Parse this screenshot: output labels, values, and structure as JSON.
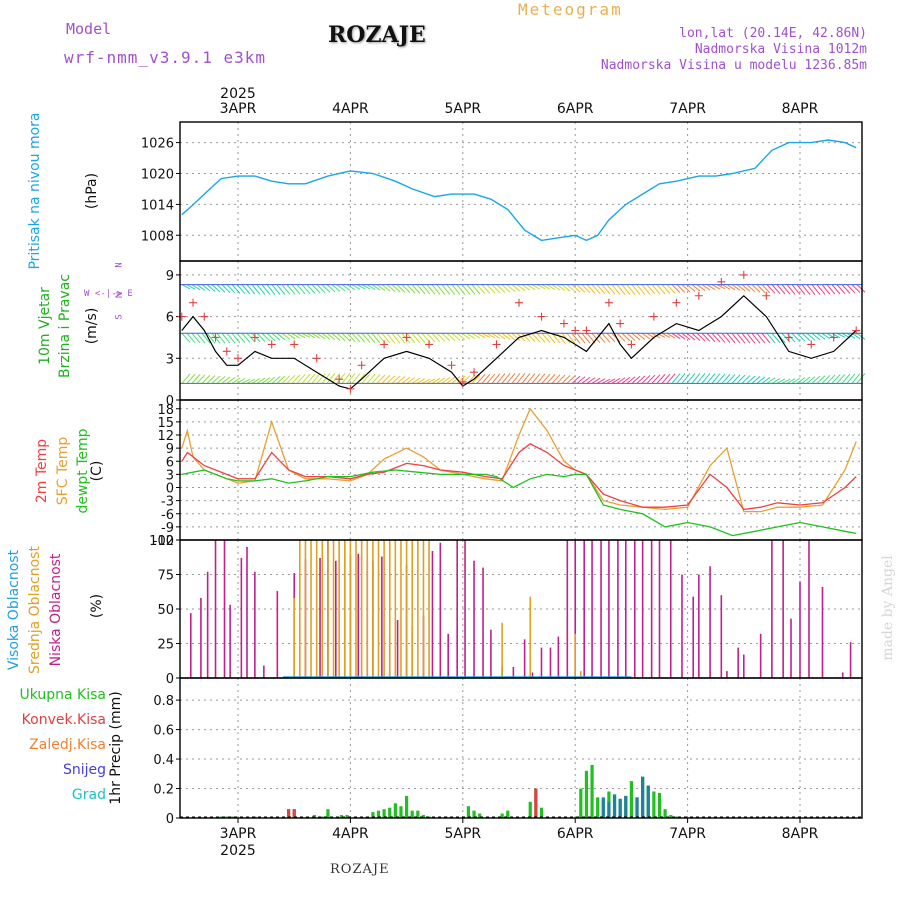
{
  "header": {
    "model_label": "Model",
    "model_name": "wrf-nmm_v3.9.1 e3km",
    "station": "ROZAJE",
    "title": "Meteogram",
    "lonlat": "lon,lat (20.14E, 42.86N)",
    "elevation": "Nadmorska Visina 1012m",
    "model_elevation": "Nadmorska Visina u modelu 1236.85m",
    "year": "2025",
    "credit": "made by Angel",
    "footer": "ROZAJE"
  },
  "colors": {
    "pressure": "#1aa6e6",
    "wind": "#20b020",
    "t2m": "#f04040",
    "sfc": "#e8a030",
    "dew": "#20c020",
    "high_cloud": "#20a0e0",
    "mid_cloud": "#e0a020",
    "low_cloud": "#c0208a",
    "total_precip": "#20c020",
    "conv_precip": "#e04040",
    "frz_precip": "#f08030",
    "snow": "#4040e0",
    "hail": "#20c0c0"
  },
  "chart_data": [
    {
      "type": "line",
      "title": "Pritisak na nivou mora",
      "ylabel": "(hPa)",
      "x_labels": [
        "3APR",
        "4APR",
        "5APR",
        "6APR",
        "7APR",
        "8APR"
      ],
      "x_range_days": [
        -0.5,
        5.5
      ],
      "yticks": [
        1008,
        1014,
        1020,
        1026
      ],
      "ylim": [
        1003,
        1030
      ],
      "series": [
        {
          "name": "MSLP",
          "x": [
            -0.5,
            -0.42,
            -0.3,
            -0.15,
            0,
            0.15,
            0.3,
            0.45,
            0.6,
            0.8,
            1.0,
            1.2,
            1.4,
            1.55,
            1.75,
            1.9,
            2.1,
            2.25,
            2.4,
            2.55,
            2.7,
            2.85,
            3.0,
            3.1,
            3.2,
            3.3,
            3.45,
            3.6,
            3.75,
            3.9,
            4.1,
            4.25,
            4.4,
            4.6,
            4.75,
            4.9,
            5.1,
            5.25,
            5.4,
            5.5
          ],
          "values": [
            1012,
            1013.5,
            1016,
            1019,
            1019.5,
            1019.5,
            1018.5,
            1018,
            1018,
            1019.5,
            1020.5,
            1020,
            1018.5,
            1017,
            1015.5,
            1016,
            1016,
            1015,
            1013,
            1009,
            1007,
            1007.5,
            1008,
            1007,
            1008,
            1011,
            1014,
            1016,
            1018,
            1018.5,
            1019.5,
            1019.5,
            1020,
            1021,
            1024.5,
            1026,
            1026,
            1026.5,
            1026,
            1025
          ]
        }
      ]
    },
    {
      "type": "line",
      "title": "10m Vjetar Brzina i Pravac",
      "ylabel": "(m/s)",
      "x_labels": [
        "3APR",
        "4APR",
        "5APR",
        "6APR",
        "7APR",
        "8APR"
      ],
      "yticks": [
        0,
        3,
        6,
        9
      ],
      "ylim": [
        0,
        10
      ],
      "compass": "W <-|-> E",
      "series": [
        {
          "name": "10m wind",
          "x": [
            -0.5,
            -0.4,
            -0.3,
            -0.2,
            -0.1,
            0,
            0.15,
            0.3,
            0.5,
            0.7,
            0.9,
            1.0,
            1.1,
            1.3,
            1.5,
            1.7,
            1.9,
            2.0,
            2.1,
            2.3,
            2.5,
            2.7,
            2.9,
            3.0,
            3.1,
            3.3,
            3.4,
            3.5,
            3.7,
            3.9,
            4.1,
            4.3,
            4.5,
            4.7,
            4.9,
            5.1,
            5.3,
            5.5
          ],
          "values": [
            5,
            6,
            5,
            3.5,
            2.5,
            2.5,
            3.5,
            3,
            3,
            2,
            1,
            0.8,
            1.5,
            3,
            3.5,
            3,
            2,
            1,
            1.5,
            3,
            4.5,
            5,
            4.5,
            4,
            3.5,
            5.5,
            4,
            3,
            4.5,
            5.5,
            5,
            6,
            7.5,
            6,
            3.5,
            3,
            3.5,
            5
          ]
        },
        {
          "name": "gust",
          "x": [
            -0.5,
            -0.4,
            -0.3,
            -0.2,
            -0.1,
            0,
            0.15,
            0.3,
            0.5,
            0.7,
            0.9,
            1.0,
            1.1,
            1.3,
            1.5,
            1.7,
            1.9,
            2.0,
            2.1,
            2.3,
            2.5,
            2.7,
            2.9,
            3.0,
            3.1,
            3.3,
            3.4,
            3.5,
            3.7,
            3.9,
            4.1,
            4.3,
            4.5,
            4.7,
            4.9,
            5.1,
            5.3,
            5.5
          ],
          "values": [
            6,
            7,
            6,
            4.5,
            3.5,
            3,
            4.5,
            4,
            4,
            3,
            1.5,
            0.8,
            2.5,
            4,
            4.5,
            4,
            2.5,
            1.3,
            2,
            4,
            7,
            6,
            5.5,
            5,
            5,
            7,
            5.5,
            4,
            6,
            7,
            7.5,
            8.5,
            9,
            7.5,
            4.5,
            4,
            4.5,
            5
          ]
        }
      ]
    },
    {
      "type": "line",
      "title": "2m Temp / SFC Temp / dewpt Temp",
      "ylabel": "(C)",
      "x_labels": [
        "3APR",
        "4APR",
        "5APR",
        "6APR",
        "7APR",
        "8APR"
      ],
      "yticks": [
        -12,
        -9,
        -6,
        -3,
        0,
        3,
        6,
        9,
        12,
        15,
        18
      ],
      "ylim": [
        -12,
        20
      ],
      "series": [
        {
          "name": "2m Temp",
          "x": [
            -0.5,
            -0.45,
            -0.3,
            -0.1,
            0,
            0.15,
            0.3,
            0.45,
            0.6,
            0.8,
            1.0,
            1.15,
            1.3,
            1.5,
            1.65,
            1.8,
            2.0,
            2.2,
            2.35,
            2.5,
            2.6,
            2.75,
            2.9,
            3.0,
            3.1,
            3.25,
            3.4,
            3.6,
            3.8,
            4.0,
            4.2,
            4.35,
            4.5,
            4.65,
            4.8,
            5.0,
            5.2,
            5.4,
            5.5
          ],
          "values": [
            6,
            8,
            5,
            3,
            2,
            2,
            8,
            4,
            2.5,
            2.5,
            2,
            3,
            3.5,
            5.5,
            5,
            4,
            3.5,
            2.5,
            2,
            8,
            10,
            8,
            5,
            4,
            3,
            -1.5,
            -3,
            -4.5,
            -4.5,
            -4,
            3,
            0,
            -5,
            -4.5,
            -3.5,
            -4,
            -3.5,
            0,
            2.5
          ]
        },
        {
          "name": "SFC Temp",
          "x": [
            -0.5,
            -0.45,
            -0.4,
            -0.3,
            -0.1,
            0,
            0.15,
            0.3,
            0.45,
            0.6,
            0.8,
            1.0,
            1.15,
            1.3,
            1.5,
            1.65,
            1.8,
            2.0,
            2.2,
            2.35,
            2.5,
            2.6,
            2.75,
            2.9,
            3.0,
            3.1,
            3.25,
            3.4,
            3.6,
            3.8,
            4.0,
            4.2,
            4.35,
            4.5,
            4.65,
            4.8,
            5.0,
            5.2,
            5.4,
            5.5
          ],
          "values": [
            9,
            13,
            7,
            4,
            2,
            1,
            1.5,
            15,
            4,
            2,
            2,
            1.5,
            3,
            6.5,
            9,
            7,
            4,
            3,
            2,
            1.5,
            12,
            18,
            13,
            6,
            4,
            3,
            -3,
            -4,
            -4.5,
            -5,
            -4.5,
            5,
            9,
            -5.5,
            -5.5,
            -4.5,
            -4.5,
            -4,
            4,
            10.5
          ]
        },
        {
          "name": "dewpt Temp",
          "x": [
            -0.5,
            -0.4,
            -0.3,
            -0.1,
            0,
            0.15,
            0.3,
            0.45,
            0.6,
            0.8,
            1.0,
            1.2,
            1.4,
            1.6,
            1.8,
            2.0,
            2.2,
            2.3,
            2.45,
            2.6,
            2.75,
            2.9,
            3.0,
            3.1,
            3.25,
            3.4,
            3.6,
            3.8,
            4.0,
            4.2,
            4.4,
            4.6,
            4.8,
            5.0,
            5.2,
            5.4,
            5.5
          ],
          "values": [
            3,
            3.5,
            4,
            2,
            1.5,
            1.5,
            2,
            1,
            1.5,
            2.5,
            2.5,
            3.5,
            4,
            3.5,
            3,
            3,
            3,
            2.5,
            0,
            2,
            3,
            2.5,
            3,
            3,
            -4,
            -5,
            -6,
            -9,
            -8,
            -9,
            -11,
            -10,
            -9,
            -8,
            -9,
            -10,
            -10.5
          ]
        }
      ]
    },
    {
      "type": "bar",
      "title": "Visoka / Srednja / Niska Oblacnost",
      "ylabel": "(%)",
      "x_labels": [
        "3APR",
        "4APR",
        "5APR",
        "6APR",
        "7APR",
        "8APR"
      ],
      "yticks": [
        0,
        25,
        50,
        75,
        100
      ],
      "ylim": [
        0,
        100
      ],
      "series": [
        {
          "name": "Niska Oblacnost",
          "x": [
            -0.42,
            -0.33,
            -0.27,
            -0.2,
            -0.12,
            -0.07,
            0.03,
            0.08,
            0.15,
            0.23,
            0.35,
            0.5,
            0.6,
            0.73,
            0.8,
            0.87,
            0.95,
            1.0,
            1.07,
            1.15,
            1.2,
            1.28,
            1.35,
            1.42,
            1.5,
            1.55,
            1.65,
            1.73,
            1.8,
            1.87,
            1.95,
            2.02,
            2.1,
            2.18,
            2.25,
            2.35,
            2.45,
            2.55,
            2.62,
            2.7,
            2.78,
            2.85,
            2.93,
            3.0,
            3.08,
            3.15,
            3.23,
            3.3,
            3.38,
            3.45,
            3.53,
            3.6,
            3.68,
            3.75,
            3.85,
            3.95,
            4.05,
            4.1,
            4.2,
            4.3,
            4.35,
            4.45,
            4.5,
            4.65,
            4.75,
            4.85,
            4.92,
            5.0,
            5.08,
            5.2,
            5.38,
            5.45
          ],
          "values": [
            47,
            58,
            77,
            100,
            100,
            53,
            87,
            95,
            77,
            9,
            63,
            76,
            86,
            87,
            100,
            85,
            100,
            89,
            90,
            85,
            85,
            88,
            30,
            42,
            82,
            38,
            45,
            92,
            98,
            32,
            100,
            100,
            85,
            80,
            35,
            8,
            8,
            28,
            4,
            22,
            22,
            30,
            100,
            100,
            100,
            100,
            100,
            100,
            100,
            100,
            100,
            100,
            100,
            100,
            100,
            75,
            59,
            75,
            81,
            60,
            5,
            22,
            17,
            32,
            100,
            100,
            43,
            70,
            100,
            66,
            4,
            26
          ]
        },
        {
          "name": "Srednja Oblacnost",
          "x": [
            0.5,
            0.55,
            0.6,
            0.65,
            0.7,
            0.75,
            0.8,
            0.85,
            0.9,
            0.95,
            1.0,
            1.05,
            1.1,
            1.15,
            1.2,
            1.25,
            1.3,
            1.35,
            1.4,
            1.45,
            1.5,
            1.55,
            1.6,
            1.65,
            1.7,
            2.35,
            2.6,
            3.0,
            3.05
          ],
          "values": [
            58,
            100,
            100,
            100,
            100,
            100,
            100,
            100,
            100,
            100,
            100,
            100,
            100,
            100,
            100,
            100,
            100,
            100,
            100,
            100,
            100,
            100,
            100,
            100,
            100,
            40,
            59,
            32,
            5
          ]
        },
        {
          "name": "Visoka Oblacnost",
          "x": [],
          "values": []
        }
      ]
    },
    {
      "type": "bar",
      "title": "1hr Precip",
      "ylabel": "1hr Precip (mm)",
      "x_labels": [
        "3APR",
        "4APR",
        "5APR",
        "6APR",
        "7APR",
        "8APR"
      ],
      "yticks": [
        0,
        0.2,
        0.4,
        0.6,
        0.8
      ],
      "ylim": [
        0,
        0.95
      ],
      "legend": [
        "Ukupna Kisa",
        "Konvek.Kisa",
        "Zaledj.Kisa",
        "Snijeg",
        "Grad"
      ],
      "series": [
        {
          "name": "Ukupna Kisa",
          "x": [
            -0.15,
            -0.1,
            -0.05,
            0.15,
            0.45,
            0.5,
            0.68,
            0.75,
            0.8,
            0.92,
            0.97,
            1.15,
            1.2,
            1.25,
            1.3,
            1.35,
            1.4,
            1.45,
            1.5,
            1.55,
            1.6,
            1.65,
            1.7,
            1.85,
            1.9,
            2.05,
            2.1,
            2.15,
            2.35,
            2.4,
            2.6,
            2.65,
            2.7,
            3.05,
            3.1,
            3.15,
            3.2,
            3.25,
            3.3,
            3.35,
            3.4,
            3.45,
            3.5,
            3.55,
            3.6,
            3.65,
            3.7,
            3.75,
            3.8,
            3.85,
            3.9
          ],
          "values": [
            0.01,
            0.01,
            0.01,
            0.01,
            0.06,
            0.06,
            0.02,
            0.01,
            0.06,
            0.02,
            0.02,
            0.01,
            0.04,
            0.05,
            0.06,
            0.07,
            0.1,
            0.08,
            0.15,
            0.05,
            0.05,
            0.02,
            0.01,
            0.01,
            0.01,
            0.08,
            0.05,
            0.03,
            0.03,
            0.05,
            0.11,
            0.2,
            0.07,
            0.2,
            0.32,
            0.36,
            0.14,
            0.12,
            0.18,
            0.16,
            0.13,
            0.15,
            0.25,
            0.14,
            0.28,
            0.22,
            0.18,
            0.17,
            0.06,
            0.02,
            0.01
          ]
        },
        {
          "name": "Konvek.Kisa",
          "x": [
            0.45,
            0.5,
            2.65
          ],
          "values": [
            0.06,
            0.06,
            0.2
          ]
        },
        {
          "name": "Snijeg",
          "x": [
            3.25,
            3.3,
            3.35,
            3.4,
            3.45,
            3.55,
            3.6,
            3.65
          ],
          "values": [
            0.14,
            0.11,
            0.16,
            0.13,
            0.15,
            0.14,
            0.28,
            0.22
          ]
        }
      ]
    }
  ],
  "labels": {
    "p1_title": "Pritisak na nivou mora",
    "p1_unit": "(hPa)",
    "p2_title_a": "10m Vjetar",
    "p2_title_b": "Brzina i Pravac",
    "p2_unit": "(m/s)",
    "p2_compass": "W <-|-> E",
    "p2_compass_n": "N",
    "p2_compass_s": "S",
    "p3_t2m": "2m Temp",
    "p3_sfc": "SFC Temp",
    "p3_dew": "dewpt Temp",
    "p3_unit": "(C)",
    "p4_high": "Visoka Oblacnost",
    "p4_mid": "Srednja Oblacnost",
    "p4_low": "Niska Oblacnost",
    "p4_unit": "(%)",
    "p5_unit": "1hr Precip (mm)",
    "leg_total": "Ukupna Kisa",
    "leg_conv": "Konvek.Kisa",
    "leg_frz": "Zaledj.Kisa",
    "leg_snow": "Snijeg",
    "leg_hail": "Grad"
  }
}
